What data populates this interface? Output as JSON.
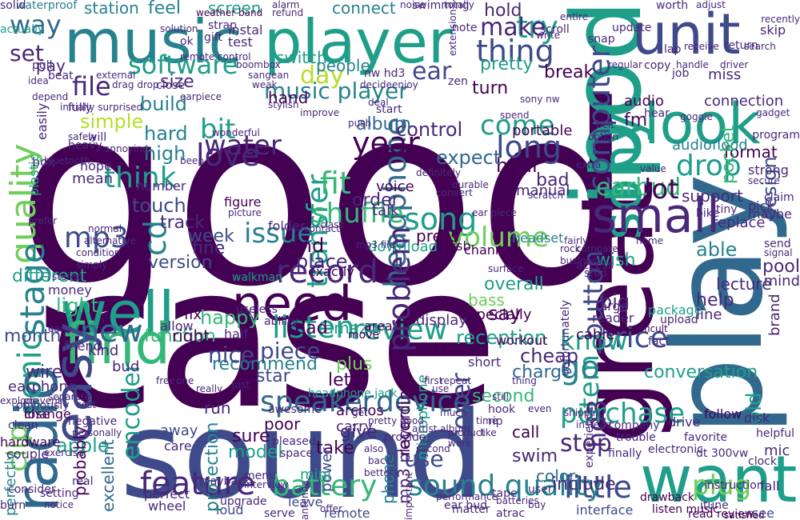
{
  "palette": {
    "purple_dark": "#440154",
    "purple": "#482878",
    "indigo": "#3e4a89",
    "blue": "#31688e",
    "teal": "#26828e",
    "green_teal": "#1f9e89",
    "green": "#35b779",
    "lime": "#6ece58",
    "yellow_green": "#b5de2b",
    "yellow": "#fde725"
  },
  "words": [
    {
      "text": "good"
    },
    {
      "text": "case"
    },
    {
      "text": "sound"
    },
    {
      "text": "play"
    },
    {
      "text": "ipod"
    },
    {
      "text": "great"
    },
    {
      "text": "player"
    },
    {
      "text": "music"
    },
    {
      "text": "unit"
    },
    {
      "text": "well"
    },
    {
      "text": "look"
    },
    {
      "text": "sony"
    },
    {
      "text": "radio"
    },
    {
      "text": "find"
    },
    {
      "text": "easy"
    },
    {
      "text": "want"
    },
    {
      "text": "small"
    },
    {
      "text": "need"
    },
    {
      "text": "feature"
    },
    {
      "text": "battery"
    },
    {
      "text": "little"
    },
    {
      "text": "sound quality"
    },
    {
      "text": "speaker"
    },
    {
      "text": "device"
    },
    {
      "text": "quality"
    },
    {
      "text": "stage"
    },
    {
      "text": "sonic"
    },
    {
      "text": "computer"
    },
    {
      "text": "headphone"
    },
    {
      "text": "transfer"
    },
    {
      "text": "button"
    },
    {
      "text": "thing"
    },
    {
      "text": "software"
    },
    {
      "text": "record"
    },
    {
      "text": "song"
    },
    {
      "text": "review"
    },
    {
      "text": "problem"
    },
    {
      "text": "new"
    },
    {
      "text": "think"
    },
    {
      "text": "love"
    },
    {
      "text": "fit"
    },
    {
      "text": "year"
    },
    {
      "text": "long"
    },
    {
      "text": "earbud"
    },
    {
      "text": "item"
    },
    {
      "text": "hd3"
    },
    {
      "text": "cd"
    },
    {
      "text": "mp3"
    },
    {
      "text": "issue"
    },
    {
      "text": "shuffle"
    },
    {
      "text": "volume"
    },
    {
      "text": "listen"
    },
    {
      "text": "price"
    },
    {
      "text": "purchase"
    },
    {
      "text": "go"
    },
    {
      "text": "try"
    },
    {
      "text": "make"
    },
    {
      "text": "file"
    },
    {
      "text": "day"
    },
    {
      "text": "bit"
    },
    {
      "text": "water"
    },
    {
      "text": "come"
    },
    {
      "text": "lot"
    },
    {
      "text": "drop"
    },
    {
      "text": "know"
    },
    {
      "text": "cover"
    },
    {
      "text": "plug"
    },
    {
      "text": "stop"
    },
    {
      "text": "encoder"
    },
    {
      "text": "clip"
    },
    {
      "text": "set"
    },
    {
      "text": "way"
    },
    {
      "text": "music player"
    },
    {
      "text": "ear"
    },
    {
      "text": "recommend"
    },
    {
      "text": "different"
    },
    {
      "text": "month"
    },
    {
      "text": "function"
    },
    {
      "text": "nice"
    },
    {
      "text": "piece"
    },
    {
      "text": "reception"
    },
    {
      "text": "happy"
    },
    {
      "text": "light"
    },
    {
      "text": "apple"
    },
    {
      "text": "build"
    },
    {
      "text": "simple"
    },
    {
      "text": "hard"
    },
    {
      "text": "high"
    },
    {
      "text": "touch"
    },
    {
      "text": "track"
    },
    {
      "text": "week"
    },
    {
      "text": "fine"
    },
    {
      "text": "end"
    },
    {
      "text": "place"
    },
    {
      "text": "version"
    },
    {
      "text": "say"
    },
    {
      "text": "overall"
    },
    {
      "text": "help"
    },
    {
      "text": "charge"
    },
    {
      "text": "cheap"
    },
    {
      "text": "conversation"
    },
    {
      "text": "use"
    },
    {
      "text": "model"
    },
    {
      "text": "sure"
    },
    {
      "text": "take"
    },
    {
      "text": "give"
    },
    {
      "text": "control"
    },
    {
      "text": "call"
    },
    {
      "text": "swim"
    },
    {
      "text": "color"
    },
    {
      "text": "include"
    },
    {
      "text": "wish"
    },
    {
      "text": "able"
    },
    {
      "text": "support"
    },
    {
      "text": "format"
    },
    {
      "text": "audioflood"
    },
    {
      "text": "audio"
    },
    {
      "text": "connection"
    },
    {
      "text": "hour"
    },
    {
      "text": "expect"
    },
    {
      "text": "bad"
    },
    {
      "text": "album"
    },
    {
      "text": "portable"
    },
    {
      "text": "manual"
    },
    {
      "text": "voice"
    },
    {
      "text": "order"
    },
    {
      "text": "talk"
    },
    {
      "text": "pocket"
    },
    {
      "text": "replace"
    },
    {
      "text": "design"
    },
    {
      "text": "lecture"
    },
    {
      "text": "mind"
    },
    {
      "text": "pool"
    },
    {
      "text": "fm"
    },
    {
      "text": "break"
    },
    {
      "text": "pretty"
    },
    {
      "text": "hold"
    },
    {
      "text": "turn"
    },
    {
      "text": "station"
    },
    {
      "text": "feel"
    },
    {
      "text": "screen"
    },
    {
      "text": "connect"
    },
    {
      "text": "switch"
    },
    {
      "text": "people"
    },
    {
      "text": "pay"
    },
    {
      "text": "size"
    },
    {
      "text": "hand"
    },
    {
      "text": "bass"
    },
    {
      "text": "star"
    },
    {
      "text": "plus"
    },
    {
      "text": "second"
    },
    {
      "text": "amazon"
    },
    {
      "text": "let"
    },
    {
      "text": "perfectly"
    },
    {
      "text": "wire"
    },
    {
      "text": "earphone"
    },
    {
      "text": "change"
    },
    {
      "text": "run"
    },
    {
      "text": "bud"
    },
    {
      "text": "kind"
    },
    {
      "text": "poor"
    },
    {
      "text": "power"
    },
    {
      "text": "mini"
    },
    {
      "text": "archos"
    },
    {
      "text": "carry"
    },
    {
      "text": "tape"
    },
    {
      "text": "remote"
    },
    {
      "text": "fall"
    },
    {
      "text": "see"
    },
    {
      "text": "interface"
    },
    {
      "text": "mp3 player"
    },
    {
      "text": "phone"
    },
    {
      "text": "recording"
    },
    {
      "text": "microphone"
    },
    {
      "text": "excellent"
    },
    {
      "text": "probably"
    },
    {
      "text": "perfect"
    },
    {
      "text": "wheel"
    },
    {
      "text": "loud"
    },
    {
      "text": "leave"
    },
    {
      "text": "serve"
    },
    {
      "text": "away"
    },
    {
      "text": "care"
    },
    {
      "text": "protection"
    },
    {
      "text": "fix"
    },
    {
      "text": "half"
    },
    {
      "text": "allow"
    },
    {
      "text": "read"
    },
    {
      "text": "right"
    },
    {
      "text": "big"
    },
    {
      "text": "old"
    },
    {
      "text": "brand"
    },
    {
      "text": "download"
    },
    {
      "text": "press"
    },
    {
      "text": "exactly"
    },
    {
      "text": "especially"
    },
    {
      "text": "display"
    },
    {
      "text": "area"
    },
    {
      "text": "move"
    },
    {
      "text": "workout"
    },
    {
      "text": "usb"
    },
    {
      "text": "headset"
    },
    {
      "text": "channel"
    },
    {
      "text": "walkman"
    },
    {
      "text": "useless"
    },
    {
      "text": "folder"
    },
    {
      "text": "ability"
    },
    {
      "text": "cable"
    },
    {
      "text": "reader"
    },
    {
      "text": "fact"
    },
    {
      "text": "package"
    },
    {
      "text": "drive"
    },
    {
      "text": "line"
    },
    {
      "text": "large"
    },
    {
      "text": "upload"
    },
    {
      "text": "difficult"
    },
    {
      "text": "follow"
    },
    {
      "text": "disk"
    },
    {
      "text": "helpful"
    },
    {
      "text": "mic"
    },
    {
      "text": "clock"
    },
    {
      "text": "itune"
    },
    {
      "text": "instruction"
    },
    {
      "text": "drawback"
    },
    {
      "text": "listen music"
    },
    {
      "text": "read review"
    },
    {
      "text": "satisfied"
    },
    {
      "text": "easily"
    },
    {
      "text": "box"
    },
    {
      "text": "plastic"
    },
    {
      "text": "mean"
    },
    {
      "text": "hope"
    },
    {
      "text": "number"
    },
    {
      "text": "figure"
    },
    {
      "text": "picture"
    },
    {
      "text": "beep"
    },
    {
      "text": "test"
    },
    {
      "text": "instal"
    },
    {
      "text": "strap"
    },
    {
      "text": "gift"
    },
    {
      "text": "solution"
    },
    {
      "text": "ok"
    },
    {
      "text": "waterproof"
    },
    {
      "text": "solid"
    },
    {
      "text": "weather band"
    },
    {
      "text": "alarm"
    },
    {
      "text": "refund"
    },
    {
      "text": "swimming"
    },
    {
      "text": "noise"
    },
    {
      "text": "totally"
    },
    {
      "text": "note"
    },
    {
      "text": "scroll"
    },
    {
      "text": "write"
    },
    {
      "text": "entire"
    },
    {
      "text": "extension"
    },
    {
      "text": "update"
    },
    {
      "text": "snap"
    },
    {
      "text": "worth"
    },
    {
      "text": "adjust"
    },
    {
      "text": "recently"
    },
    {
      "text": "skip"
    },
    {
      "text": "search"
    },
    {
      "text": "return"
    },
    {
      "text": "miss"
    },
    {
      "text": "job"
    },
    {
      "text": "copy"
    },
    {
      "text": "lap"
    },
    {
      "text": "receive"
    },
    {
      "text": "regular"
    },
    {
      "text": "hear"
    },
    {
      "text": "goggle"
    },
    {
      "text": "driver"
    },
    {
      "text": "handle"
    },
    {
      "text": "strong"
    },
    {
      "text": "secure"
    },
    {
      "text": "program"
    },
    {
      "text": "maybe"
    },
    {
      "text": "send"
    },
    {
      "text": "signal"
    },
    {
      "text": "tiny"
    },
    {
      "text": "pick"
    },
    {
      "text": "claim"
    },
    {
      "text": "bike"
    },
    {
      "text": "extra"
    },
    {
      "text": "value"
    },
    {
      "text": "spend"
    },
    {
      "text": "scratch"
    },
    {
      "text": "definitely"
    },
    {
      "text": "durable"
    },
    {
      "text": "push"
    },
    {
      "text": "start"
    },
    {
      "text": "sony nw"
    },
    {
      "text": "deal"
    },
    {
      "text": "mp3 file"
    },
    {
      "text": "class"
    },
    {
      "text": "contact"
    },
    {
      "text": "headphone jack"
    },
    {
      "text": "awesome"
    },
    {
      "text": "pleased"
    },
    {
      "text": "space"
    },
    {
      "text": "interview"
    },
    {
      "text": "menu"
    },
    {
      "text": "upgrade"
    },
    {
      "text": "playback"
    },
    {
      "text": "batteries"
    },
    {
      "text": "buy"
    },
    {
      "text": "product"
    },
    {
      "text": "work"
    },
    {
      "text": "time"
    },
    {
      "text": "like"
    },
    {
      "text": "use"
    },
    {
      "text": "one"
    },
    {
      "text": "really"
    },
    {
      "text": "just"
    },
    {
      "text": "get"
    },
    {
      "text": "also"
    },
    {
      "text": "much"
    },
    {
      "text": "even"
    },
    {
      "text": "thing"
    },
    {
      "text": "still"
    },
    {
      "text": "first"
    },
    {
      "text": "back"
    },
    {
      "text": "better"
    },
    {
      "text": "lose"
    },
    {
      "text": "clean"
    },
    {
      "text": "negative"
    },
    {
      "text": "personally"
    },
    {
      "text": "hardware"
    },
    {
      "text": "consider"
    },
    {
      "text": "burn"
    },
    {
      "text": "real"
    },
    {
      "text": "setting"
    },
    {
      "text": "notice"
    },
    {
      "text": "obviously"
    },
    {
      "text": "explode"
    },
    {
      "text": "prevent"
    },
    {
      "text": "couple"
    },
    {
      "text": "exercise"
    },
    {
      "text": "friend"
    },
    {
      "text": "early"
    },
    {
      "text": "separate"
    },
    {
      "text": "cost"
    },
    {
      "text": "normal"
    },
    {
      "text": "alternative"
    },
    {
      "text": "initially surprised"
    },
    {
      "text": "depend"
    },
    {
      "text": "idea"
    },
    {
      "text": "pull"
    },
    {
      "text": "beat"
    },
    {
      "text": "actually"
    },
    {
      "text": "free"
    },
    {
      "text": "option"
    },
    {
      "text": "belt"
    },
    {
      "text": "surface"
    },
    {
      "text": "ship"
    },
    {
      "text": "access"
    },
    {
      "text": "home"
    },
    {
      "text": "fairly"
    },
    {
      "text": "rock"
    },
    {
      "text": "business"
    },
    {
      "text": "shipping"
    },
    {
      "text": "instead"
    },
    {
      "text": "repeat"
    },
    {
      "text": "short"
    },
    {
      "text": "artist album"
    },
    {
      "text": "pretty good"
    },
    {
      "text": "provide"
    },
    {
      "text": "hook"
    },
    {
      "text": "rip"
    },
    {
      "text": "favorite"
    },
    {
      "text": "trouble"
    },
    {
      "text": "company"
    },
    {
      "text": "electronic"
    },
    {
      "text": "dt 300vw"
    },
    {
      "text": "finally"
    },
    {
      "text": "ear bud"
    },
    {
      "text": "atrac"
    },
    {
      "text": "important"
    },
    {
      "text": "performance"
    },
    {
      "text": "matter"
    },
    {
      "text": "user"
    },
    {
      "text": "offer"
    },
    {
      "text": "antenna"
    },
    {
      "text": "second"
    },
    {
      "text": "unfortunately"
    },
    {
      "text": "experience"
    },
    {
      "text": "compare"
    },
    {
      "text": "ear piece"
    },
    {
      "text": "convert"
    },
    {
      "text": "zen"
    },
    {
      "text": "nw hd3"
    },
    {
      "text": "enjoy"
    },
    {
      "text": "decide"
    },
    {
      "text": "sangean"
    },
    {
      "text": "weak"
    },
    {
      "text": "boombox"
    },
    {
      "text": "stylish"
    },
    {
      "text": "improve"
    },
    {
      "text": "earpiece"
    },
    {
      "text": "close"
    },
    {
      "text": "external"
    },
    {
      "text": "drag drop"
    },
    {
      "text": "remote control"
    },
    {
      "text": "fully"
    },
    {
      "text": "heavy"
    },
    {
      "text": "safely"
    },
    {
      "text": "bluetooth"
    },
    {
      "text": "prefer"
    },
    {
      "text": "condition"
    },
    {
      "text": "simply"
    },
    {
      "text": "stereo"
    },
    {
      "text": "money"
    },
    {
      "text": "will"
    },
    {
      "text": "annoying"
    },
    {
      "text": "wonderful"
    },
    {
      "text": "gadget"
    }
  ]
}
